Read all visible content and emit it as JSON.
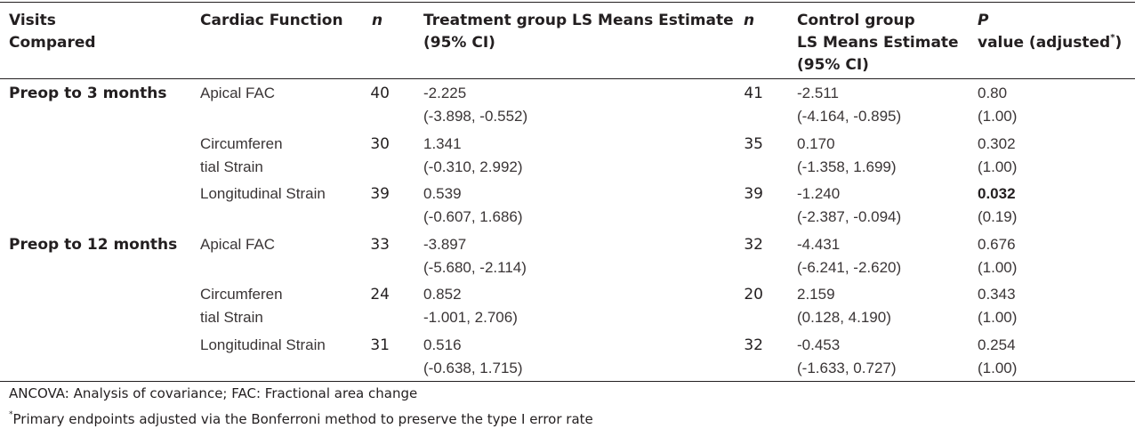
{
  "headers": {
    "visits": [
      "Visits",
      "Compared"
    ],
    "function": "Cardiac Function",
    "n1": "n",
    "treatment": [
      "Treatment group LS Means Estimate",
      "(95% CI)"
    ],
    "n2": "n",
    "control": [
      "Control group",
      "LS Means Estimate",
      "(95% CI)"
    ],
    "p": [
      "P",
      "value (adjusted",
      "*",
      ")"
    ]
  },
  "rows": [
    {
      "visit": "Preop to 3 months",
      "func": [
        "Apical FAC",
        ""
      ],
      "n_t": "40",
      "t": [
        "-2.225",
        "(-3.898, -0.552)"
      ],
      "n_c": "41",
      "c": [
        "-2.511",
        "(-4.164, -0.895)"
      ],
      "p": [
        "0.80",
        "(1.00)"
      ],
      "bold": false
    },
    {
      "visit": "",
      "func": [
        "Circumferen",
        "tial Strain"
      ],
      "n_t": "30",
      "t": [
        "1.341",
        "(-0.310, 2.992)"
      ],
      "n_c": "35",
      "c": [
        "0.170",
        "(-1.358, 1.699)"
      ],
      "p": [
        "0.302",
        "(1.00)"
      ],
      "bold": false
    },
    {
      "visit": "",
      "func": [
        "Longitudinal Strain",
        ""
      ],
      "n_t": "39",
      "t": [
        "0.539",
        "(-0.607, 1.686)"
      ],
      "n_c": "39",
      "c": [
        "-1.240",
        "(-2.387, -0.094)"
      ],
      "p": [
        "0.032",
        "(0.19)"
      ],
      "bold": true
    },
    {
      "visit": "Preop to 12 months",
      "func": [
        "Apical FAC",
        ""
      ],
      "n_t": "33",
      "t": [
        "-3.897",
        "(-5.680, -2.114)"
      ],
      "n_c": "32",
      "c": [
        "-4.431",
        "(-6.241, -2.620)"
      ],
      "p": [
        "0.676",
        "(1.00)"
      ],
      "bold": false
    },
    {
      "visit": "",
      "func": [
        "Circumferen",
        "tial Strain"
      ],
      "n_t": "24",
      "t": [
        "0.852",
        "-1.001, 2.706)"
      ],
      "n_c": "20",
      "c": [
        "2.159",
        "(0.128, 4.190)"
      ],
      "p": [
        "0.343",
        "(1.00)"
      ],
      "bold": false
    },
    {
      "visit": "",
      "func": [
        "Longitudinal Strain",
        ""
      ],
      "n_t": "31",
      "t": [
        "0.516",
        "(-0.638, 1.715)"
      ],
      "n_c": "32",
      "c": [
        "-0.453",
        "(-1.633, 0.727)"
      ],
      "p": [
        "0.254",
        "(1.00)"
      ],
      "bold": false
    }
  ],
  "footnotes": {
    "abbrev": "ANCOVA: Analysis of covariance; FAC: Fractional area change",
    "star": "*",
    "primary": "Primary endpoints adjusted via the Bonferroni method to preserve the type I error rate"
  }
}
